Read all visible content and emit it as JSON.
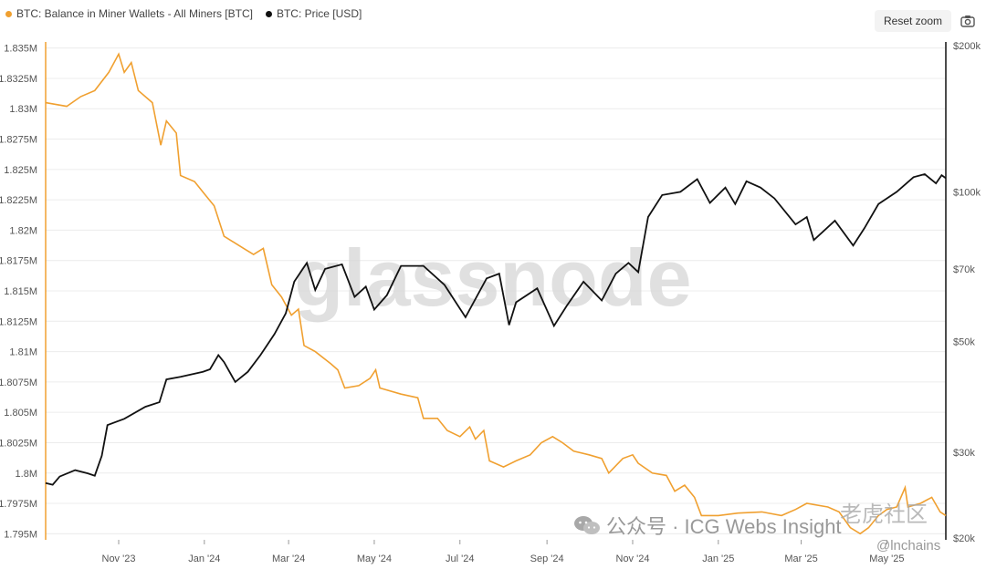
{
  "legend": {
    "series1": "BTC: Balance in Miner Wallets - All Miners [BTC]",
    "series2": "BTC: Price [USD]"
  },
  "toolbar": {
    "reset_zoom": "Reset zoom",
    "camera_icon": "camera-icon"
  },
  "watermark": "glassnode",
  "overlay": {
    "wechat_text": "公众号 · ICG Webs Insight",
    "handle": "@lnchains",
    "corner": "老虎社区"
  },
  "colors": {
    "balance": "#f0a030",
    "price": "#111111",
    "axis_left": "#f0a030",
    "axis_right": "#111111",
    "grid": "#ececec"
  },
  "chart_data": {
    "type": "line",
    "x_ticks": [
      "Nov '23",
      "Jan '24",
      "Mar '24",
      "May '24",
      "Jul '24",
      "Sep '24",
      "Nov '24",
      "Jan '25",
      "Mar '25",
      "May '25"
    ],
    "x_tick_dates": [
      "2023-11-01",
      "2024-01-01",
      "2024-03-01",
      "2024-05-01",
      "2024-07-01",
      "2024-09-01",
      "2024-11-01",
      "2025-01-01",
      "2025-03-01",
      "2025-05-01"
    ],
    "x_range": [
      "2023-09-10",
      "2025-06-12"
    ],
    "y_left": {
      "range": [
        1.7945,
        1.8355
      ],
      "ticks": [
        1.795,
        1.7975,
        1.8,
        1.8025,
        1.805,
        1.8075,
        1.81,
        1.8125,
        1.815,
        1.8175,
        1.82,
        1.8225,
        1.825,
        1.8275,
        1.83,
        1.8325,
        1.835
      ],
      "tick_labels": [
        "1.795M",
        "1.7975M",
        "1.8M",
        "1.8025M",
        "1.805M",
        "1.8075M",
        "1.81M",
        "1.8125M",
        "1.815M",
        "1.8175M",
        "1.82M",
        "1.8225M",
        "1.825M",
        "1.8275M",
        "1.83M",
        "1.8325M",
        "1.835M"
      ]
    },
    "y_right": {
      "scale": "log",
      "range": [
        20000,
        200000
      ],
      "ticks": [
        20000,
        30000,
        50000,
        70000,
        100000,
        200000
      ],
      "tick_labels": [
        "$20k",
        "$30k",
        "$50k",
        "$70k",
        "$100k",
        "$200k"
      ]
    },
    "grid": true,
    "series": [
      {
        "name": "BTC: Balance in Miner Wallets - All Miners [BTC]",
        "axis": "left",
        "points": [
          [
            "2023-09-10",
            1.8305
          ],
          [
            "2023-09-25",
            1.8302
          ],
          [
            "2023-10-05",
            1.831
          ],
          [
            "2023-10-15",
            1.8315
          ],
          [
            "2023-10-25",
            1.833
          ],
          [
            "2023-11-01",
            1.8345
          ],
          [
            "2023-11-05",
            1.833
          ],
          [
            "2023-11-10",
            1.8338
          ],
          [
            "2023-11-15",
            1.8315
          ],
          [
            "2023-11-25",
            1.8305
          ],
          [
            "2023-12-01",
            1.827
          ],
          [
            "2023-12-05",
            1.829
          ],
          [
            "2023-12-12",
            1.828
          ],
          [
            "2023-12-15",
            1.8245
          ],
          [
            "2023-12-25",
            1.824
          ],
          [
            "2024-01-01",
            1.823
          ],
          [
            "2024-01-08",
            1.822
          ],
          [
            "2024-01-15",
            1.8195
          ],
          [
            "2024-01-22",
            1.819
          ],
          [
            "2024-01-29",
            1.8185
          ],
          [
            "2024-02-05",
            1.818
          ],
          [
            "2024-02-12",
            1.8185
          ],
          [
            "2024-02-18",
            1.8155
          ],
          [
            "2024-02-25",
            1.8145
          ],
          [
            "2024-03-03",
            1.813
          ],
          [
            "2024-03-08",
            1.8135
          ],
          [
            "2024-03-12",
            1.8105
          ],
          [
            "2024-03-20",
            1.81
          ],
          [
            "2024-03-31",
            1.809
          ],
          [
            "2024-04-05",
            1.8085
          ],
          [
            "2024-04-10",
            1.807
          ],
          [
            "2024-04-20",
            1.8072
          ],
          [
            "2024-04-28",
            1.8078
          ],
          [
            "2024-05-02",
            1.8085
          ],
          [
            "2024-05-05",
            1.807
          ],
          [
            "2024-05-20",
            1.8065
          ],
          [
            "2024-06-01",
            1.8062
          ],
          [
            "2024-06-05",
            1.8045
          ],
          [
            "2024-06-15",
            1.8045
          ],
          [
            "2024-06-22",
            1.8035
          ],
          [
            "2024-07-01",
            1.803
          ],
          [
            "2024-07-08",
            1.8038
          ],
          [
            "2024-07-12",
            1.8028
          ],
          [
            "2024-07-18",
            1.8035
          ],
          [
            "2024-07-22",
            1.801
          ],
          [
            "2024-08-01",
            1.8005
          ],
          [
            "2024-08-10",
            1.801
          ],
          [
            "2024-08-20",
            1.8015
          ],
          [
            "2024-08-28",
            1.8025
          ],
          [
            "2024-09-05",
            1.803
          ],
          [
            "2024-09-12",
            1.8025
          ],
          [
            "2024-09-20",
            1.8018
          ],
          [
            "2024-10-01",
            1.8015
          ],
          [
            "2024-10-10",
            1.8012
          ],
          [
            "2024-10-15",
            1.8
          ],
          [
            "2024-10-25",
            1.8012
          ],
          [
            "2024-11-01",
            1.8015
          ],
          [
            "2024-11-05",
            1.8008
          ],
          [
            "2024-11-15",
            1.8
          ],
          [
            "2024-11-25",
            1.7998
          ],
          [
            "2024-12-01",
            1.7985
          ],
          [
            "2024-12-08",
            1.799
          ],
          [
            "2024-12-15",
            1.798
          ],
          [
            "2024-12-20",
            1.7965
          ],
          [
            "2025-01-01",
            1.7965
          ],
          [
            "2025-01-15",
            1.7967
          ],
          [
            "2025-02-01",
            1.7968
          ],
          [
            "2025-02-15",
            1.7965
          ],
          [
            "2025-02-25",
            1.797
          ],
          [
            "2025-03-05",
            1.7975
          ],
          [
            "2025-03-20",
            1.7972
          ],
          [
            "2025-03-28",
            1.7968
          ],
          [
            "2025-04-05",
            1.7955
          ],
          [
            "2025-04-12",
            1.795
          ],
          [
            "2025-04-18",
            1.7955
          ],
          [
            "2025-04-25",
            1.7965
          ],
          [
            "2025-05-01",
            1.797
          ],
          [
            "2025-05-08",
            1.7972
          ],
          [
            "2025-05-14",
            1.7988
          ],
          [
            "2025-05-16",
            1.7972
          ],
          [
            "2025-05-25",
            1.7975
          ],
          [
            "2025-06-02",
            1.798
          ],
          [
            "2025-06-08",
            1.7968
          ],
          [
            "2025-06-12",
            1.7965
          ]
        ]
      },
      {
        "name": "BTC: Price [USD]",
        "axis": "right",
        "points": [
          [
            "2023-09-10",
            26000
          ],
          [
            "2023-09-15",
            25800
          ],
          [
            "2023-09-20",
            26800
          ],
          [
            "2023-10-01",
            27600
          ],
          [
            "2023-10-10",
            27200
          ],
          [
            "2023-10-15",
            26900
          ],
          [
            "2023-10-20",
            29500
          ],
          [
            "2023-10-24",
            34000
          ],
          [
            "2023-11-05",
            35000
          ],
          [
            "2023-11-20",
            37000
          ],
          [
            "2023-11-30",
            37800
          ],
          [
            "2023-12-05",
            42000
          ],
          [
            "2023-12-15",
            42500
          ],
          [
            "2023-12-31",
            43500
          ],
          [
            "2024-01-05",
            44000
          ],
          [
            "2024-01-11",
            47000
          ],
          [
            "2024-01-15",
            45500
          ],
          [
            "2024-01-23",
            41500
          ],
          [
            "2024-02-01",
            43500
          ],
          [
            "2024-02-10",
            47000
          ],
          [
            "2024-02-20",
            51800
          ],
          [
            "2024-02-28",
            57000
          ],
          [
            "2024-03-05",
            66000
          ],
          [
            "2024-03-14",
            72000
          ],
          [
            "2024-03-20",
            63500
          ],
          [
            "2024-03-27",
            70000
          ],
          [
            "2024-04-08",
            71500
          ],
          [
            "2024-04-17",
            61500
          ],
          [
            "2024-04-25",
            64500
          ],
          [
            "2024-05-01",
            58000
          ],
          [
            "2024-05-10",
            62000
          ],
          [
            "2024-05-20",
            71000
          ],
          [
            "2024-06-05",
            71000
          ],
          [
            "2024-06-20",
            65000
          ],
          [
            "2024-07-05",
            56000
          ],
          [
            "2024-07-20",
            67000
          ],
          [
            "2024-07-29",
            68500
          ],
          [
            "2024-08-05",
            54000
          ],
          [
            "2024-08-10",
            60000
          ],
          [
            "2024-08-25",
            64000
          ],
          [
            "2024-09-06",
            53800
          ],
          [
            "2024-09-15",
            59000
          ],
          [
            "2024-09-27",
            66000
          ],
          [
            "2024-10-10",
            60500
          ],
          [
            "2024-10-20",
            68500
          ],
          [
            "2024-10-29",
            72000
          ],
          [
            "2024-11-05",
            69000
          ],
          [
            "2024-11-12",
            89000
          ],
          [
            "2024-11-22",
            98500
          ],
          [
            "2024-12-05",
            100000
          ],
          [
            "2024-12-17",
            106000
          ],
          [
            "2024-12-26",
            95000
          ],
          [
            "2025-01-06",
            102000
          ],
          [
            "2025-01-13",
            94500
          ],
          [
            "2025-01-21",
            105000
          ],
          [
            "2025-01-31",
            102000
          ],
          [
            "2025-02-10",
            97000
          ],
          [
            "2025-02-25",
            86000
          ],
          [
            "2025-03-05",
            89000
          ],
          [
            "2025-03-10",
            80000
          ],
          [
            "2025-03-25",
            87500
          ],
          [
            "2025-04-07",
            78000
          ],
          [
            "2025-04-15",
            84500
          ],
          [
            "2025-04-25",
            94500
          ],
          [
            "2025-05-08",
            100000
          ],
          [
            "2025-05-20",
            107000
          ],
          [
            "2025-05-28",
            108500
          ],
          [
            "2025-06-05",
            104000
          ],
          [
            "2025-06-09",
            108000
          ],
          [
            "2025-06-12",
            106500
          ]
        ]
      }
    ]
  }
}
